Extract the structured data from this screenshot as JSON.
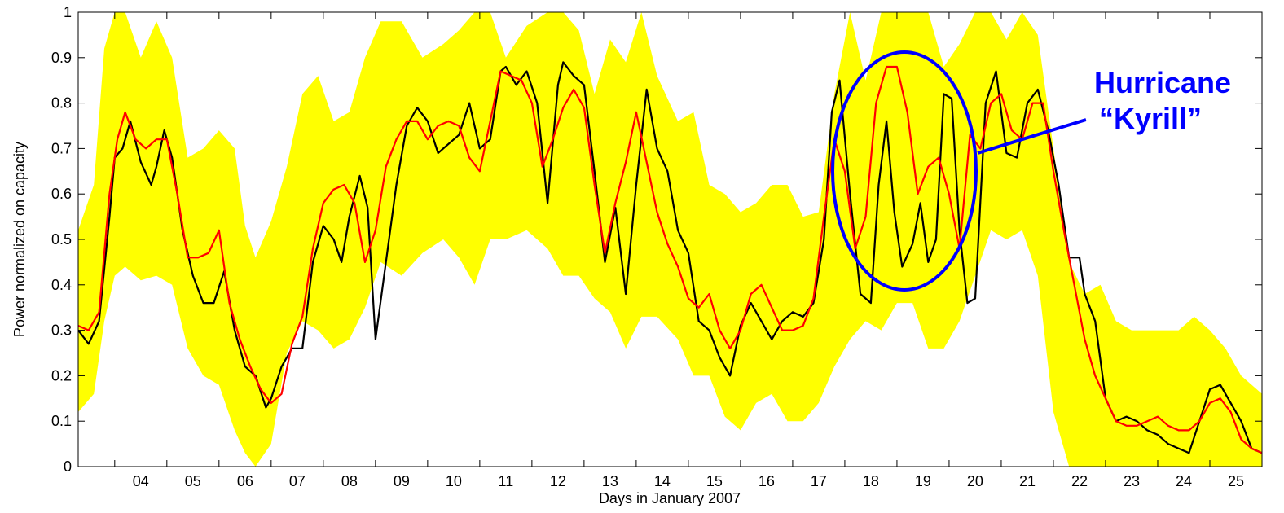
{
  "chart_data": {
    "type": "line",
    "xlabel": "Days in January 2007",
    "ylabel": "Power normalized on capacity",
    "xlim": [
      3.3,
      26.0
    ],
    "ylim": [
      0,
      1
    ],
    "x_ticks": [
      "04",
      "05",
      "06",
      "07",
      "08",
      "09",
      "10",
      "11",
      "12",
      "13",
      "14",
      "15",
      "16",
      "17",
      "18",
      "19",
      "20",
      "21",
      "22",
      "23",
      "24",
      "25"
    ],
    "y_ticks": [
      "0",
      "0.1",
      "0.2",
      "0.3",
      "0.4",
      "0.5",
      "0.6",
      "0.7",
      "0.8",
      "0.9",
      "1"
    ],
    "grid": false,
    "colors": {
      "band": "#ffff00",
      "measured": "#000000",
      "forecast": "#ff0000",
      "annotation": "#0000ff"
    },
    "band": {
      "x": [
        3.3,
        3.6,
        3.8,
        4.0,
        4.2,
        4.5,
        4.8,
        5.1,
        5.4,
        5.7,
        6.0,
        6.3,
        6.5,
        6.7,
        7.0,
        7.3,
        7.6,
        7.9,
        8.2,
        8.5,
        8.8,
        9.1,
        9.5,
        9.9,
        10.3,
        10.6,
        10.9,
        11.2,
        11.5,
        11.9,
        12.3,
        12.6,
        12.9,
        13.2,
        13.5,
        13.8,
        14.1,
        14.4,
        14.8,
        15.1,
        15.4,
        15.7,
        16.0,
        16.3,
        16.6,
        16.9,
        17.2,
        17.5,
        17.8,
        18.1,
        18.4,
        18.7,
        19.0,
        19.3,
        19.6,
        19.9,
        20.2,
        20.5,
        20.8,
        21.1,
        21.4,
        21.7,
        22.0,
        22.3,
        22.6,
        22.9,
        23.2,
        23.5,
        23.8,
        24.1,
        24.4,
        24.7,
        25.0,
        25.3,
        25.6,
        26.0
      ],
      "lower": [
        0.12,
        0.16,
        0.32,
        0.42,
        0.44,
        0.41,
        0.42,
        0.4,
        0.26,
        0.2,
        0.18,
        0.08,
        0.03,
        0.0,
        0.05,
        0.25,
        0.32,
        0.3,
        0.26,
        0.28,
        0.35,
        0.45,
        0.42,
        0.47,
        0.5,
        0.46,
        0.4,
        0.5,
        0.5,
        0.52,
        0.48,
        0.42,
        0.42,
        0.37,
        0.34,
        0.26,
        0.33,
        0.33,
        0.28,
        0.2,
        0.2,
        0.11,
        0.08,
        0.14,
        0.16,
        0.1,
        0.1,
        0.14,
        0.22,
        0.28,
        0.32,
        0.3,
        0.36,
        0.36,
        0.26,
        0.26,
        0.32,
        0.42,
        0.52,
        0.5,
        0.52,
        0.42,
        0.12,
        0.0,
        0.0,
        0.0,
        0.0,
        0.0,
        0.0,
        0.0,
        0.0,
        0.0,
        0.0,
        0.0,
        0.0,
        0.0
      ],
      "upper": [
        0.52,
        0.62,
        0.92,
        1.0,
        1.0,
        0.9,
        0.98,
        0.9,
        0.68,
        0.7,
        0.74,
        0.7,
        0.53,
        0.46,
        0.54,
        0.66,
        0.82,
        0.86,
        0.76,
        0.78,
        0.9,
        0.98,
        0.98,
        0.9,
        0.93,
        0.96,
        1.0,
        1.0,
        0.9,
        0.97,
        1.0,
        1.0,
        0.96,
        0.82,
        0.94,
        0.89,
        1.0,
        0.86,
        0.76,
        0.78,
        0.62,
        0.6,
        0.56,
        0.58,
        0.62,
        0.62,
        0.55,
        0.56,
        0.82,
        1.0,
        0.85,
        1.0,
        1.0,
        1.0,
        1.0,
        0.88,
        0.93,
        1.0,
        1.0,
        0.94,
        1.0,
        0.95,
        0.7,
        0.45,
        0.38,
        0.4,
        0.32,
        0.3,
        0.3,
        0.3,
        0.3,
        0.33,
        0.3,
        0.26,
        0.2,
        0.16
      ]
    },
    "series": [
      {
        "x": [
          3.3,
          3.5,
          3.7,
          3.9,
          4.0,
          4.15,
          4.3,
          4.5,
          4.7,
          4.8,
          4.95,
          5.1,
          5.3,
          5.5,
          5.7,
          5.9,
          6.1,
          6.3,
          6.5,
          6.7,
          6.9,
          7.0,
          7.2,
          7.4,
          7.6,
          7.8,
          8.0,
          8.2,
          8.35,
          8.5,
          8.7,
          8.85,
          9.0,
          9.2,
          9.4,
          9.6,
          9.8,
          10.0,
          10.2,
          10.4,
          10.6,
          10.8,
          11.0,
          11.2,
          11.4,
          11.5,
          11.7,
          11.9,
          12.1,
          12.3,
          12.5,
          12.6,
          12.8,
          13.0,
          13.2,
          13.4,
          13.6,
          13.8,
          14.0,
          14.2,
          14.4,
          14.6,
          14.8,
          15.0,
          15.2,
          15.4,
          15.6,
          15.8,
          16.0,
          16.2,
          16.4,
          16.6,
          16.8,
          17.0,
          17.2,
          17.4,
          17.6,
          17.75,
          17.9,
          18.1,
          18.3,
          18.5,
          18.65,
          18.8,
          18.95,
          19.1,
          19.3,
          19.45,
          19.6,
          19.75,
          19.9,
          20.05,
          20.2,
          20.35,
          20.5,
          20.7,
          20.9,
          21.1,
          21.3,
          21.5,
          21.7,
          21.9,
          22.1,
          22.3,
          22.5,
          22.6,
          22.8,
          23.0,
          23.2,
          23.4,
          23.6,
          23.8,
          24.0,
          24.2,
          24.4,
          24.6,
          24.8,
          25.0,
          25.2,
          25.4,
          25.6,
          25.8,
          26.0
        ],
        "values": [
          0.3,
          0.27,
          0.32,
          0.55,
          0.68,
          0.7,
          0.76,
          0.67,
          0.62,
          0.66,
          0.74,
          0.68,
          0.52,
          0.42,
          0.36,
          0.36,
          0.43,
          0.3,
          0.22,
          0.2,
          0.13,
          0.15,
          0.22,
          0.26,
          0.26,
          0.45,
          0.53,
          0.5,
          0.45,
          0.55,
          0.64,
          0.57,
          0.28,
          0.45,
          0.62,
          0.75,
          0.79,
          0.76,
          0.69,
          0.71,
          0.73,
          0.8,
          0.7,
          0.72,
          0.87,
          0.88,
          0.84,
          0.87,
          0.8,
          0.58,
          0.84,
          0.89,
          0.86,
          0.84,
          0.65,
          0.45,
          0.57,
          0.38,
          0.62,
          0.83,
          0.7,
          0.65,
          0.52,
          0.47,
          0.32,
          0.3,
          0.24,
          0.2,
          0.31,
          0.36,
          0.32,
          0.28,
          0.32,
          0.34,
          0.33,
          0.36,
          0.5,
          0.78,
          0.85,
          0.6,
          0.38,
          0.36,
          0.62,
          0.76,
          0.56,
          0.44,
          0.49,
          0.58,
          0.45,
          0.5,
          0.82,
          0.81,
          0.52,
          0.36,
          0.37,
          0.8,
          0.87,
          0.69,
          0.68,
          0.8,
          0.83,
          0.74,
          0.62,
          0.46,
          0.46,
          0.38,
          0.32,
          0.15,
          0.1,
          0.11,
          0.1,
          0.08,
          0.07,
          0.05,
          0.04,
          0.03,
          0.1,
          0.17,
          0.18,
          0.14,
          0.1,
          0.04,
          0.03
        ],
        "color": "#000000"
      },
      {
        "x": [
          3.3,
          3.5,
          3.7,
          3.9,
          4.05,
          4.2,
          4.4,
          4.6,
          4.8,
          5.0,
          5.2,
          5.4,
          5.6,
          5.8,
          6.0,
          6.2,
          6.4,
          6.6,
          6.8,
          7.0,
          7.2,
          7.4,
          7.6,
          7.8,
          8.0,
          8.2,
          8.4,
          8.6,
          8.8,
          9.0,
          9.2,
          9.4,
          9.6,
          9.8,
          10.0,
          10.2,
          10.4,
          10.6,
          10.8,
          11.0,
          11.2,
          11.4,
          11.6,
          11.8,
          12.0,
          12.2,
          12.4,
          12.6,
          12.8,
          13.0,
          13.2,
          13.4,
          13.6,
          13.8,
          14.0,
          14.2,
          14.4,
          14.6,
          14.8,
          15.0,
          15.2,
          15.4,
          15.6,
          15.8,
          16.0,
          16.2,
          16.4,
          16.6,
          16.8,
          17.0,
          17.2,
          17.4,
          17.6,
          17.8,
          18.0,
          18.2,
          18.4,
          18.6,
          18.8,
          19.0,
          19.2,
          19.4,
          19.6,
          19.8,
          20.0,
          20.2,
          20.4,
          20.6,
          20.8,
          21.0,
          21.2,
          21.4,
          21.6,
          21.8,
          22.0,
          22.2,
          22.4,
          22.6,
          22.8,
          23.0,
          23.2,
          23.4,
          23.6,
          23.8,
          24.0,
          24.2,
          24.4,
          24.6,
          24.8,
          25.0,
          25.2,
          25.4,
          25.6,
          25.8,
          26.0
        ],
        "values": [
          0.31,
          0.3,
          0.34,
          0.6,
          0.72,
          0.78,
          0.72,
          0.7,
          0.72,
          0.72,
          0.6,
          0.46,
          0.46,
          0.47,
          0.52,
          0.36,
          0.28,
          0.22,
          0.17,
          0.14,
          0.16,
          0.27,
          0.33,
          0.48,
          0.58,
          0.61,
          0.62,
          0.58,
          0.45,
          0.52,
          0.66,
          0.72,
          0.76,
          0.76,
          0.72,
          0.75,
          0.76,
          0.75,
          0.68,
          0.65,
          0.76,
          0.87,
          0.86,
          0.85,
          0.8,
          0.66,
          0.72,
          0.79,
          0.83,
          0.79,
          0.62,
          0.47,
          0.58,
          0.67,
          0.78,
          0.67,
          0.56,
          0.49,
          0.44,
          0.37,
          0.35,
          0.38,
          0.3,
          0.26,
          0.3,
          0.38,
          0.4,
          0.35,
          0.3,
          0.3,
          0.31,
          0.37,
          0.55,
          0.72,
          0.65,
          0.48,
          0.55,
          0.8,
          0.88,
          0.88,
          0.78,
          0.6,
          0.66,
          0.68,
          0.6,
          0.48,
          0.73,
          0.7,
          0.8,
          0.82,
          0.74,
          0.72,
          0.8,
          0.8,
          0.65,
          0.52,
          0.4,
          0.28,
          0.2,
          0.15,
          0.1,
          0.09,
          0.09,
          0.1,
          0.11,
          0.09,
          0.08,
          0.08,
          0.1,
          0.14,
          0.15,
          0.12,
          0.06,
          0.04,
          0.03
        ],
        "color": "#ff0000"
      }
    ],
    "annotation": {
      "line1": "Hurricane",
      "line2": "“Kyrill”",
      "color": "#0000ff"
    }
  }
}
